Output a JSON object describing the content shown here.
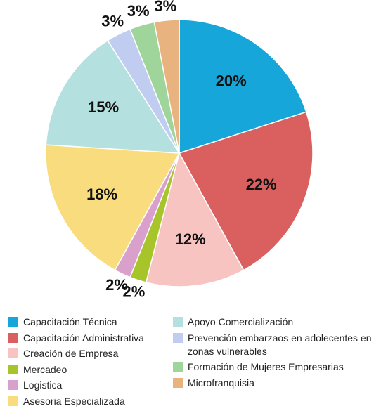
{
  "chart_data": {
    "type": "pie",
    "categories": [
      "Capacitación Técnica",
      "Capacitación Administrativa",
      "Creación de Empresa",
      "Mercadeo",
      "Logistica",
      "Asesoria Especializada",
      "Apoyo Comercialización",
      "Prevención embarzaos en adolecentes en zonas vulnerables",
      "Formación de Mujeres Empresarias",
      "Microfranquisia"
    ],
    "values": [
      20,
      22,
      12,
      2,
      2,
      18,
      15,
      3,
      3,
      3
    ],
    "value_labels": [
      "20%",
      "22%",
      "12%",
      "2%",
      "2%",
      "18%",
      "15%",
      "3%",
      "3%",
      "3%"
    ],
    "colors": [
      "#17a6d9",
      "#d9605f",
      "#f7c4c1",
      "#a7c42b",
      "#d9a0cc",
      "#f8dc7d",
      "#b4e0df",
      "#c1cdf0",
      "#9fd59b",
      "#e8b37f"
    ]
  }
}
